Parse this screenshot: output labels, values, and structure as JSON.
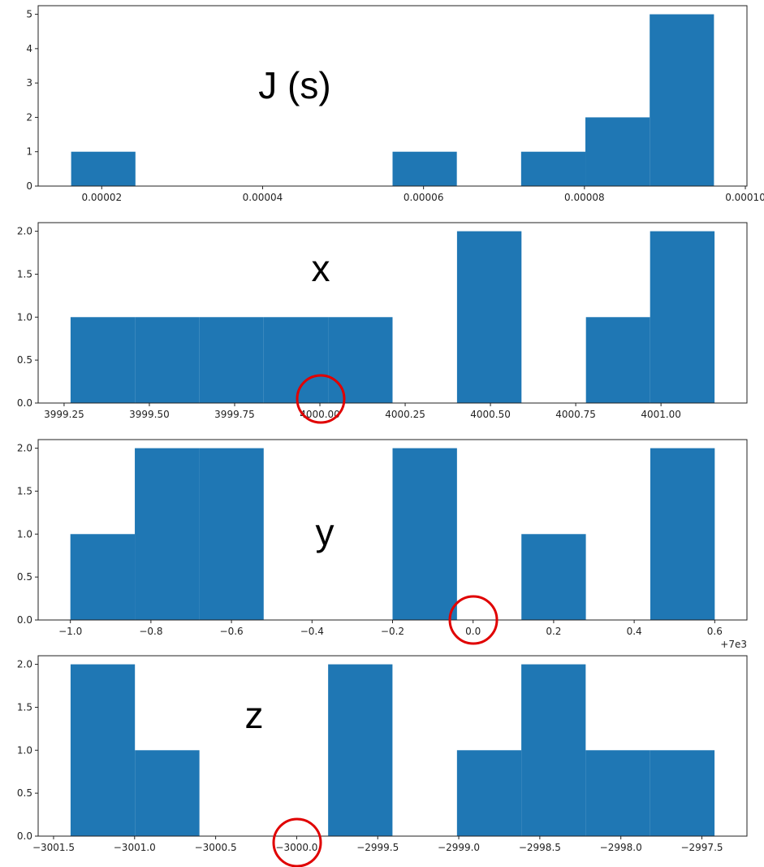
{
  "chart_data": [
    {
      "type": "histogram",
      "title": "J (s)",
      "color": "#1f77b4",
      "bins": [
        1.62e-05,
        2.419e-05,
        3.218e-05,
        4.017e-05,
        4.816e-05,
        5.615e-05,
        6.414e-05,
        7.213e-05,
        8.012e-05,
        8.811e-05,
        9.61e-05
      ],
      "counts": [
        1,
        0,
        0,
        0,
        0,
        1,
        0,
        1,
        2,
        5
      ],
      "xlim": [
        1.21e-05,
        0.0001002
      ],
      "ylim": [
        0,
        5.25
      ],
      "xticks": [
        2e-05,
        4e-05,
        6e-05,
        8e-05,
        {
          "value": 0.0001,
          "label": "0.00010"
        }
      ],
      "yticks": [
        0,
        1,
        2,
        3,
        4,
        5
      ]
    },
    {
      "type": "histogram",
      "title": "x",
      "color": "#1f77b4",
      "bins": [
        3999.269,
        3999.458,
        3999.647,
        3999.835,
        4000.024,
        4000.213,
        4000.402,
        4000.591,
        4000.78,
        4000.968,
        4001.157
      ],
      "counts": [
        1,
        1,
        1,
        1,
        1,
        0,
        2,
        0,
        1,
        2
      ],
      "xlim": [
        3999.174,
        4001.252
      ],
      "ylim": [
        0,
        2.1
      ],
      "xticks": [
        3999.25,
        {
          "value": 3999.5,
          "label": "3999.50"
        },
        3999.75,
        {
          "value": 4000,
          "label": "4000.00"
        },
        4000.25,
        {
          "value": 4000.5,
          "label": "4000.50"
        },
        4000.75,
        {
          "value": 4001,
          "label": "4001.00"
        }
      ],
      "yticks": [
        {
          "value": 0,
          "label": "0.0"
        },
        0.5,
        {
          "value": 1,
          "label": "1.0"
        },
        1.5,
        {
          "value": 2,
          "label": "2.0"
        }
      ]
    },
    {
      "type": "histogram",
      "title": "y",
      "color": "#1f77b4",
      "offset_text": "+7e3",
      "bins": [
        -1.0,
        -0.84,
        -0.68,
        -0.52,
        -0.36,
        -0.2,
        -0.04,
        0.12,
        0.28,
        0.44,
        0.6
      ],
      "counts": [
        1,
        2,
        2,
        0,
        0,
        2,
        0,
        1,
        0,
        2
      ],
      "xlim": [
        -1.08,
        0.68
      ],
      "ylim": [
        0,
        2.1
      ],
      "xticks": [
        {
          "value": -1.0,
          "label": "−1.0"
        },
        {
          "value": -0.8,
          "label": "−0.8"
        },
        {
          "value": -0.6,
          "label": "−0.6"
        },
        {
          "value": -0.4,
          "label": "−0.4"
        },
        {
          "value": -0.2,
          "label": "−0.2"
        },
        {
          "value": 0,
          "label": "0.0"
        },
        0.2,
        0.4,
        0.6
      ],
      "yticks": [
        {
          "value": 0,
          "label": "0.0"
        },
        0.5,
        {
          "value": 1,
          "label": "1.0"
        },
        1.5,
        {
          "value": 2,
          "label": "2.0"
        }
      ]
    },
    {
      "type": "histogram",
      "title": "z",
      "color": "#1f77b4",
      "bins": [
        -3001.395,
        -3000.998,
        -3000.6,
        -3000.203,
        -2999.806,
        -2999.409,
        -2999.011,
        -2998.614,
        -2998.217,
        -2997.819,
        -2997.422
      ],
      "counts": [
        2,
        1,
        0,
        0,
        2,
        0,
        1,
        2,
        1,
        1
      ],
      "xlim": [
        -3001.595,
        -2997.222
      ],
      "ylim": [
        0,
        2.1
      ],
      "xticks": [
        {
          "value": -3001.5,
          "label": "−3001.5"
        },
        {
          "value": -3001.0,
          "label": "−3001.0"
        },
        {
          "value": -3000.5,
          "label": "−3000.5"
        },
        {
          "value": -3000.0,
          "label": "−3000.0"
        },
        {
          "value": -2999.5,
          "label": "−2999.5"
        },
        {
          "value": -2999.0,
          "label": "−2999.0"
        },
        {
          "value": -2998.5,
          "label": "−2998.5"
        },
        {
          "value": -2998.0,
          "label": "−2998.0"
        },
        {
          "value": -2997.5,
          "label": "−2997.5"
        }
      ],
      "yticks": [
        {
          "value": 0,
          "label": "0.0"
        },
        0.5,
        {
          "value": 1,
          "label": "1.0"
        },
        1.5,
        {
          "value": 2,
          "label": "2.0"
        }
      ]
    }
  ]
}
